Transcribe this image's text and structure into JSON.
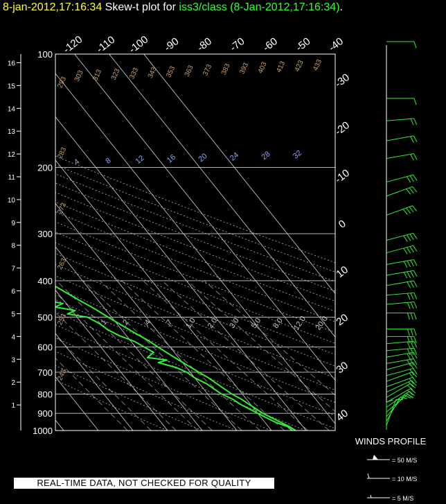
{
  "header": {
    "date_time": "8-jan-2012,17:16:34",
    "plot_label": "  Skew-t plot for ",
    "station": "iss3/class (8-Jan-2012,17:16:34)",
    "trailer": "."
  },
  "footer": {
    "disclaimer": "REAL-TIME DATA, NOT CHECKED FOR QUALITY",
    "winds_title": "WINDS PROFILE",
    "wind_legend": [
      "= 50 M/S",
      "= 10 M/S",
      "= 5 M/S"
    ]
  },
  "colors": {
    "profile": "#33ee33",
    "title_date": "#ffff33",
    "mixing_ratio": "#88aaff",
    "theta": "#c8a070",
    "isobar": "#cccccc"
  },
  "chart_data": {
    "type": "line",
    "title": "Skew-t plot for iss3/class (8-Jan-2012,17:16:34)",
    "pressure_levels": [
      100,
      200,
      300,
      400,
      500,
      600,
      700,
      800,
      900,
      1000
    ],
    "pressure_range": [
      100,
      1000
    ],
    "height_km_ticks": [
      1,
      2,
      3,
      4,
      5,
      6,
      7,
      8,
      9,
      10,
      11,
      12,
      13,
      14,
      15,
      16
    ],
    "temperature_ticks_top": [
      "-120",
      "-110",
      "-100",
      "-90",
      "-80",
      "-70",
      "-60",
      "-50",
      "-40"
    ],
    "temperature_ticks_right": [
      "-30",
      "-20",
      "-10",
      "0",
      "10",
      "20",
      "30",
      "40"
    ],
    "theta_labels": [
      "293",
      "303",
      "313",
      "323",
      "333",
      "343",
      "353",
      "363",
      "373",
      "383",
      "393",
      "403",
      "413",
      "423",
      "433",
      "283",
      "273",
      "263",
      "253",
      "243"
    ],
    "mixing_ratio_labels_upper": [
      "4",
      "8",
      "12",
      "16",
      "20",
      "24",
      "28",
      "32"
    ],
    "mixing_ratio_labels_lower": [
      ".1",
      ".2",
      ".4",
      ".7",
      "1.0",
      "2.0",
      "3.0",
      "5.0",
      "8.0",
      "12.0",
      "20.0"
    ],
    "series": [
      {
        "kind": "temperature",
        "points": [
          [
            1000,
            7
          ],
          [
            975,
            6
          ],
          [
            950,
            4.5
          ],
          [
            925,
            3
          ],
          [
            900,
            1.5
          ],
          [
            875,
            0.5
          ],
          [
            850,
            -0.5
          ],
          [
            825,
            -1.5
          ],
          [
            800,
            -3
          ],
          [
            775,
            -4
          ],
          [
            750,
            -5
          ],
          [
            725,
            -6
          ],
          [
            700,
            -7.5
          ],
          [
            675,
            -9
          ],
          [
            650,
            -10.5
          ],
          [
            625,
            -12
          ],
          [
            600,
            -13.5
          ],
          [
            575,
            -15
          ],
          [
            550,
            -17
          ],
          [
            525,
            -19
          ],
          [
            500,
            -21
          ],
          [
            475,
            -23
          ],
          [
            450,
            -25.5
          ],
          [
            425,
            -28
          ],
          [
            400,
            -30.5
          ],
          [
            375,
            -33
          ],
          [
            350,
            -36
          ],
          [
            325,
            -39
          ],
          [
            300,
            -42
          ],
          [
            275,
            -45
          ],
          [
            250,
            -48
          ],
          [
            225,
            -51
          ],
          [
            200,
            -54
          ],
          [
            180,
            -56.5
          ],
          [
            160,
            -58
          ],
          [
            150,
            -58.5
          ],
          [
            140,
            -58.5
          ],
          [
            130,
            -58
          ],
          [
            120,
            -57
          ],
          [
            110,
            -56
          ],
          [
            100,
            -55.5
          ]
        ]
      },
      {
        "kind": "dewpoint",
        "points": [
          [
            1000,
            6
          ],
          [
            975,
            5.5
          ],
          [
            950,
            3
          ],
          [
            925,
            1.5
          ],
          [
            900,
            0
          ],
          [
            875,
            -1.5
          ],
          [
            850,
            -3
          ],
          [
            825,
            -4
          ],
          [
            800,
            -6
          ],
          [
            775,
            -7
          ],
          [
            750,
            -8
          ],
          [
            725,
            -10
          ],
          [
            700,
            -11
          ],
          [
            680,
            -13
          ],
          [
            660,
            -17
          ],
          [
            650,
            -14
          ],
          [
            640,
            -19
          ],
          [
            620,
            -16
          ],
          [
            600,
            -17.5
          ],
          [
            580,
            -19
          ],
          [
            560,
            -22
          ],
          [
            540,
            -24
          ],
          [
            520,
            -25
          ],
          [
            500,
            -27
          ],
          [
            490,
            -32
          ],
          [
            480,
            -29
          ],
          [
            470,
            -34
          ],
          [
            460,
            -31
          ],
          [
            450,
            -35
          ],
          [
            440,
            -38
          ],
          [
            430,
            -36
          ],
          [
            420,
            -39
          ],
          [
            410,
            -42
          ],
          [
            400,
            -39
          ],
          [
            390,
            -40
          ],
          [
            380,
            -47
          ],
          [
            370,
            -46
          ],
          [
            360,
            -50
          ],
          [
            350,
            -48
          ],
          [
            340,
            -52
          ],
          [
            330,
            -54
          ],
          [
            320,
            -55
          ],
          [
            310,
            -58
          ],
          [
            300,
            -60
          ],
          [
            290,
            -60
          ],
          [
            280,
            -59
          ],
          [
            270,
            -58
          ],
          [
            260,
            -55
          ],
          [
            250,
            -57
          ],
          [
            240,
            -65
          ],
          [
            230,
            -68
          ],
          [
            220,
            -69
          ],
          [
            210,
            -70
          ],
          [
            200,
            -70
          ],
          [
            180,
            -70
          ],
          [
            160,
            -69
          ],
          [
            140,
            -67
          ],
          [
            130,
            -66
          ],
          [
            120,
            -64
          ],
          [
            110,
            -62
          ],
          [
            100,
            -61
          ]
        ]
      }
    ],
    "winds": [
      {
        "p": 1000,
        "dir": 180,
        "spd": 5
      },
      {
        "p": 975,
        "dir": 200,
        "spd": 8
      },
      {
        "p": 950,
        "dir": 210,
        "spd": 10
      },
      {
        "p": 925,
        "dir": 220,
        "spd": 12
      },
      {
        "p": 900,
        "dir": 230,
        "spd": 14
      },
      {
        "p": 875,
        "dir": 235,
        "spd": 15
      },
      {
        "p": 850,
        "dir": 240,
        "spd": 16
      },
      {
        "p": 825,
        "dir": 240,
        "spd": 18
      },
      {
        "p": 800,
        "dir": 245,
        "spd": 20
      },
      {
        "p": 775,
        "dir": 250,
        "spd": 20
      },
      {
        "p": 750,
        "dir": 250,
        "spd": 22
      },
      {
        "p": 725,
        "dir": 255,
        "spd": 22
      },
      {
        "p": 700,
        "dir": 255,
        "spd": 24
      },
      {
        "p": 675,
        "dir": 260,
        "spd": 25
      },
      {
        "p": 650,
        "dir": 260,
        "spd": 26
      },
      {
        "p": 625,
        "dir": 265,
        "spd": 26
      },
      {
        "p": 600,
        "dir": 265,
        "spd": 28
      },
      {
        "p": 575,
        "dir": 270,
        "spd": 28
      },
      {
        "p": 550,
        "dir": 270,
        "spd": 30
      },
      {
        "p": 500,
        "dir": 270,
        "spd": 30
      },
      {
        "p": 475,
        "dir": 265,
        "spd": 32
      },
      {
        "p": 450,
        "dir": 265,
        "spd": 33
      },
      {
        "p": 425,
        "dir": 260,
        "spd": 34
      },
      {
        "p": 400,
        "dir": 260,
        "spd": 35
      },
      {
        "p": 375,
        "dir": 260,
        "spd": 36
      },
      {
        "p": 350,
        "dir": 255,
        "spd": 38
      },
      {
        "p": 325,
        "dir": 255,
        "spd": 40
      },
      {
        "p": 280,
        "dir": 250,
        "spd": 36
      },
      {
        "p": 250,
        "dir": 250,
        "spd": 32
      },
      {
        "p": 230,
        "dir": 255,
        "spd": 28
      },
      {
        "p": 200,
        "dir": 260,
        "spd": 24
      },
      {
        "p": 180,
        "dir": 260,
        "spd": 20
      },
      {
        "p": 160,
        "dir": 265,
        "spd": 18
      },
      {
        "p": 140,
        "dir": 270,
        "spd": 14
      },
      {
        "p": 100,
        "dir": 270,
        "spd": 10
      }
    ]
  }
}
